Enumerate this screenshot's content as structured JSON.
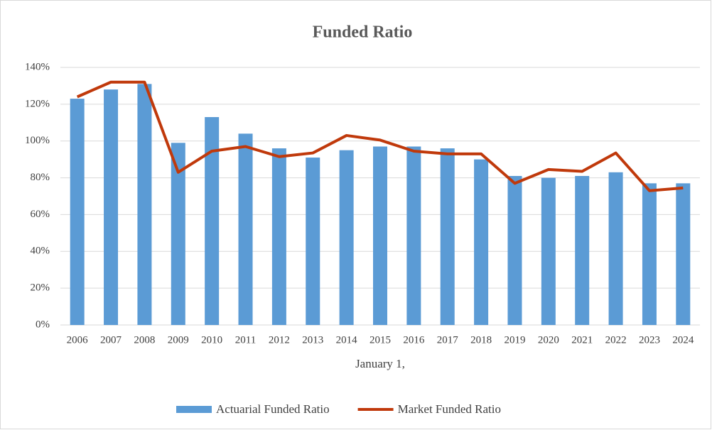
{
  "chart_data": {
    "type": "bar_line",
    "title": "Funded Ratio",
    "x_label": "January 1,",
    "categories": [
      "2006",
      "2007",
      "2008",
      "2009",
      "2010",
      "2011",
      "2012",
      "2013",
      "2014",
      "2015",
      "2016",
      "2017",
      "2018",
      "2019",
      "2020",
      "2021",
      "2022",
      "2023",
      "2024"
    ],
    "series": [
      {
        "name": "Actuarial Funded Ratio",
        "type": "bar",
        "color": "#5b9bd5",
        "values": [
          123,
          128,
          131,
          99,
          113,
          104,
          96,
          91,
          95,
          97,
          97,
          96,
          90,
          81,
          80,
          81,
          83,
          77,
          77
        ]
      },
      {
        "name": "Market Funded Ratio",
        "type": "line",
        "color": "#c0390b",
        "values": [
          124,
          132,
          132,
          83,
          94.5,
          97,
          91.5,
          93.5,
          103,
          100.5,
          94.5,
          93,
          93,
          77,
          84.5,
          83.5,
          93.5,
          73,
          74.5
        ]
      }
    ],
    "ylim": [
      0,
      140
    ],
    "yticks": [
      {
        "value": 0,
        "label": "0%"
      },
      {
        "value": 20,
        "label": "20%"
      },
      {
        "value": 40,
        "label": "40%"
      },
      {
        "value": 60,
        "label": "60%"
      },
      {
        "value": 80,
        "label": "80%"
      },
      {
        "value": 100,
        "label": "100%"
      },
      {
        "value": 120,
        "label": "120%"
      },
      {
        "value": 140,
        "label": "140%"
      }
    ],
    "grid": true,
    "legend": "bottom"
  }
}
